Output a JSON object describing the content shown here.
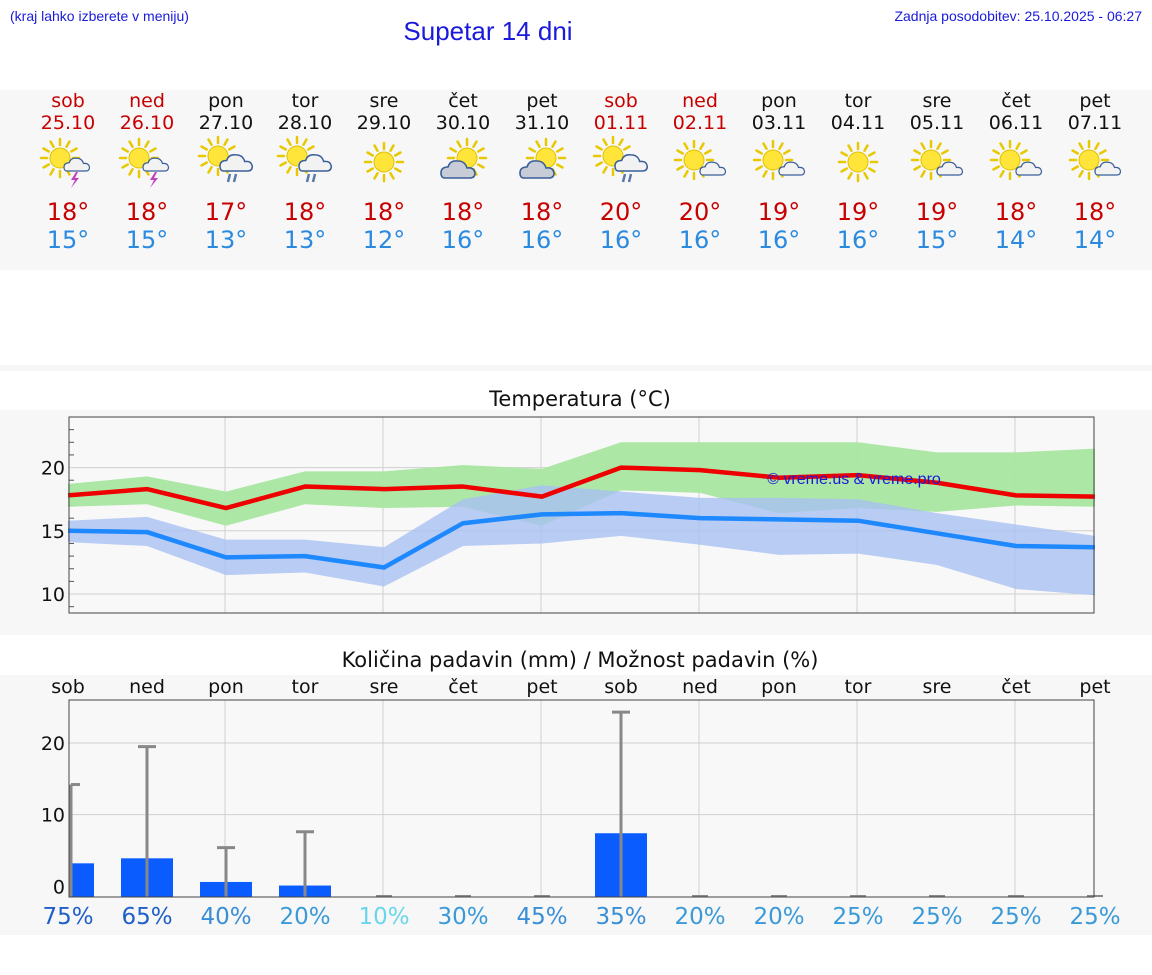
{
  "header": {
    "note": "(kraj lahko izberete v meniju)",
    "title": "Supetar 14 dni",
    "updated": "Zadnja posodobitev: 25.10.2025 - 06:27"
  },
  "colors": {
    "text_link": "#1a1adb",
    "weekend": "#c80000",
    "tmax": "#c80000",
    "tmin": "#2a8ae0",
    "max_band": "#a8e6a0",
    "min_band": "#a9c1f2",
    "max_line": "#ee0000",
    "min_line": "#1e88ff",
    "bar": "#0a5cff",
    "errorbar": "#888888"
  },
  "days": [
    {
      "name": "sob",
      "date": "25.10",
      "weekend": true,
      "icon": "sun-thunder-icon",
      "tmax": "18°",
      "tmin": "15°"
    },
    {
      "name": "ned",
      "date": "26.10",
      "weekend": true,
      "icon": "sun-thunder-icon",
      "tmax": "18°",
      "tmin": "15°"
    },
    {
      "name": "pon",
      "date": "27.10",
      "weekend": false,
      "icon": "sun-cloud-rain-icon",
      "tmax": "17°",
      "tmin": "13°"
    },
    {
      "name": "tor",
      "date": "28.10",
      "weekend": false,
      "icon": "sun-cloud-rain-icon",
      "tmax": "18°",
      "tmin": "13°"
    },
    {
      "name": "sre",
      "date": "29.10",
      "weekend": false,
      "icon": "sun-icon",
      "tmax": "18°",
      "tmin": "12°"
    },
    {
      "name": "čet",
      "date": "30.10",
      "weekend": false,
      "icon": "cloudy-sun-icon",
      "tmax": "18°",
      "tmin": "16°"
    },
    {
      "name": "pet",
      "date": "31.10",
      "weekend": false,
      "icon": "cloudy-sun-icon",
      "tmax": "18°",
      "tmin": "16°"
    },
    {
      "name": "sob",
      "date": "01.11",
      "weekend": true,
      "icon": "sun-cloud-rain-icon",
      "tmax": "20°",
      "tmin": "16°"
    },
    {
      "name": "ned",
      "date": "02.11",
      "weekend": true,
      "icon": "sun-small-cloud-icon",
      "tmax": "20°",
      "tmin": "16°"
    },
    {
      "name": "pon",
      "date": "03.11",
      "weekend": false,
      "icon": "sun-small-cloud-icon",
      "tmax": "19°",
      "tmin": "16°"
    },
    {
      "name": "tor",
      "date": "04.11",
      "weekend": false,
      "icon": "sun-icon",
      "tmax": "19°",
      "tmin": "16°"
    },
    {
      "name": "sre",
      "date": "05.11",
      "weekend": false,
      "icon": "sun-small-cloud-icon",
      "tmax": "19°",
      "tmin": "15°"
    },
    {
      "name": "čet",
      "date": "06.11",
      "weekend": false,
      "icon": "sun-small-cloud-icon",
      "tmax": "18°",
      "tmin": "14°"
    },
    {
      "name": "pet",
      "date": "07.11",
      "weekend": false,
      "icon": "sun-small-cloud-icon",
      "tmax": "18°",
      "tmin": "14°"
    }
  ],
  "chart_data": [
    {
      "type": "line",
      "title": "Temperatura (°C)",
      "watermark": "© vreme.us & vreme.pro",
      "ylim": [
        8.5,
        24
      ],
      "yticks": [
        10,
        15,
        20
      ],
      "x": [
        0,
        1,
        2,
        3,
        4,
        5,
        6,
        7,
        8,
        9,
        10,
        11,
        12,
        13
      ],
      "grid": true,
      "series": [
        {
          "values": [
            17.8,
            18.3,
            16.8,
            18.5,
            18.3,
            18.5,
            17.7,
            20.0,
            19.8,
            19.2,
            19.4,
            18.8,
            17.8,
            17.7
          ]
        },
        {
          "values": [
            15.0,
            14.9,
            12.9,
            13.0,
            12.1,
            15.6,
            16.3,
            16.4,
            16.0,
            15.9,
            15.8,
            14.8,
            13.8,
            13.7
          ]
        }
      ],
      "bands": [
        {
          "upper": [
            18.7,
            19.3,
            18.1,
            19.7,
            19.7,
            20.2,
            19.9,
            22.0,
            22.0,
            22.0,
            22.0,
            21.2,
            21.2,
            21.5
          ],
          "lower": [
            16.9,
            17.1,
            15.4,
            17.1,
            16.8,
            16.9,
            15.4,
            18.2,
            18.0,
            16.4,
            16.8,
            16.5,
            17.0,
            16.9
          ]
        },
        {
          "upper": [
            15.8,
            16.1,
            14.3,
            14.3,
            13.7,
            17.5,
            18.6,
            18.1,
            17.6,
            17.6,
            17.5,
            16.4,
            15.5,
            14.6
          ],
          "lower": [
            14.1,
            13.8,
            11.5,
            11.7,
            10.6,
            13.8,
            14.0,
            14.6,
            13.9,
            13.1,
            13.2,
            12.3,
            10.4,
            9.9
          ]
        }
      ]
    },
    {
      "type": "bar",
      "title": "Količina padavin (mm) / Možnost padavin (%)",
      "categories": [
        "sob",
        "ned",
        "pon",
        "tor",
        "sre",
        "čet",
        "pet",
        "sob",
        "ned",
        "pon",
        "tor",
        "sre",
        "čet",
        "pet"
      ],
      "ylim": [
        -1.5,
        26
      ],
      "yticks": [
        0,
        10,
        20
      ],
      "values": [
        3.2,
        3.9,
        0.6,
        0.1,
        0,
        0,
        0,
        7.4,
        0,
        0,
        0,
        0,
        0,
        0
      ],
      "error_high": [
        14.2,
        19.5,
        5.4,
        7.6,
        0,
        0,
        0,
        24.3,
        0,
        0,
        0,
        0,
        0,
        0
      ],
      "probability": [
        "75%",
        "65%",
        "40%",
        "20%",
        "10%",
        "30%",
        "45%",
        "35%",
        "20%",
        "20%",
        "25%",
        "25%",
        "25%",
        "25%"
      ],
      "probability_colors": [
        "#1f5fc8",
        "#1f5fc8",
        "#3a8ed6",
        "#3a9ad8",
        "#6ad6ec",
        "#3a9ad8",
        "#3a8ed6",
        "#3a8ed6",
        "#3a9ad8",
        "#3a9ad8",
        "#3a9ad8",
        "#3a9ad8",
        "#3a9ad8",
        "#3a9ad8"
      ]
    }
  ]
}
